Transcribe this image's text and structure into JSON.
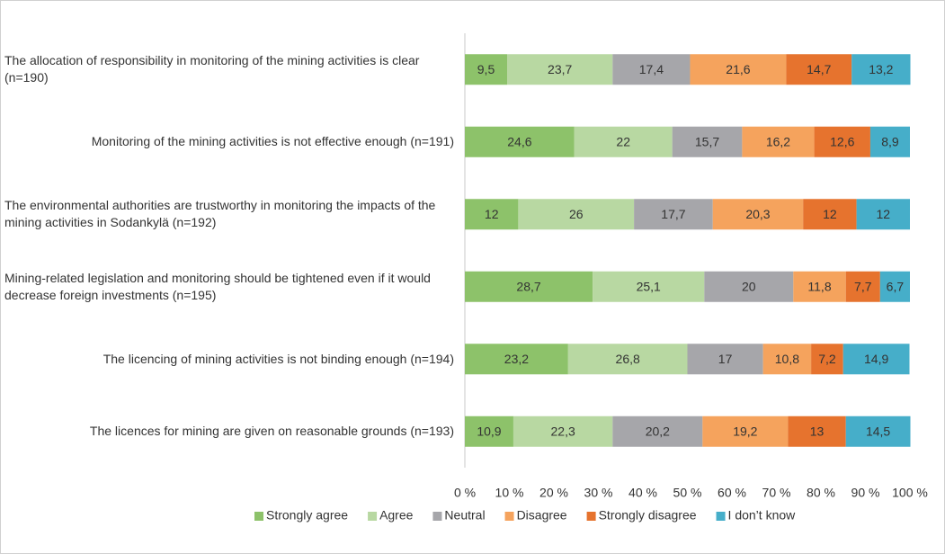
{
  "chart_data": {
    "type": "stacked-barh",
    "categories": [
      "The allocation of responsibility in monitoring of the mining activities is clear (n=190)",
      "Monitoring of the mining activities is not effective enough (n=191)",
      "The environmental authorities are trustworthy in monitoring the impacts of the mining activities in Sodankylä (n=192)",
      "Mining-related legislation and monitoring should be tightened even if it would decrease foreign investments (n=195)",
      "The licencing of mining activities is not binding enough (n=194)",
      "The licences for mining are given on reasonable grounds (n=193)"
    ],
    "series": [
      {
        "name": "Strongly agree",
        "color": "#8dc26a",
        "values": [
          9.5,
          24.6,
          12,
          28.7,
          23.2,
          10.9
        ],
        "value_labels": [
          "9,5",
          "24,6",
          "12",
          "28,7",
          "23,2",
          "10,9"
        ]
      },
      {
        "name": "Agree",
        "color": "#b8d8a2",
        "values": [
          23.7,
          22,
          26,
          25.1,
          26.8,
          22.3
        ],
        "value_labels": [
          "23,7",
          "22",
          "26",
          "25,1",
          "26,8",
          "22,3"
        ]
      },
      {
        "name": "Neutral",
        "color": "#a6a6aa",
        "values": [
          17.4,
          15.7,
          17.7,
          20,
          17,
          20.2
        ],
        "value_labels": [
          "17,4",
          "15,7",
          "17,7",
          "20",
          "17",
          "20,2"
        ]
      },
      {
        "name": "Disagree",
        "color": "#f5a35d",
        "values": [
          21.6,
          16.2,
          20.3,
          11.8,
          10.8,
          19.2
        ],
        "value_labels": [
          "21,6",
          "16,2",
          "20,3",
          "11,8",
          "10,8",
          "19,2"
        ]
      },
      {
        "name": "Strongly disagree",
        "color": "#e6732e",
        "values": [
          14.7,
          12.6,
          12,
          7.7,
          7.2,
          13
        ],
        "value_labels": [
          "14,7",
          "12,6",
          "12",
          "7,7",
          "7,2",
          "13"
        ]
      },
      {
        "name": "I don’t know",
        "color": "#46aec9",
        "values": [
          13.2,
          8.9,
          12,
          6.7,
          14.9,
          14.5
        ],
        "value_labels": [
          "13,2",
          "8,9",
          "12",
          "6,7",
          "14,9",
          "14,5"
        ]
      }
    ],
    "xlim": [
      0,
      100
    ],
    "xticks": [
      {
        "value": 0,
        "label": "0 %"
      },
      {
        "value": 10,
        "label": "10 %"
      },
      {
        "value": 20,
        "label": "20 %"
      },
      {
        "value": 30,
        "label": "30 %"
      },
      {
        "value": 40,
        "label": "40 %"
      },
      {
        "value": 50,
        "label": "50 %"
      },
      {
        "value": 60,
        "label": "60 %"
      },
      {
        "value": 70,
        "label": "70 %"
      },
      {
        "value": 80,
        "label": "80 %"
      },
      {
        "value": 90,
        "label": "90 %"
      },
      {
        "value": 100,
        "label": "100 %"
      }
    ],
    "legend": "bottom"
  }
}
